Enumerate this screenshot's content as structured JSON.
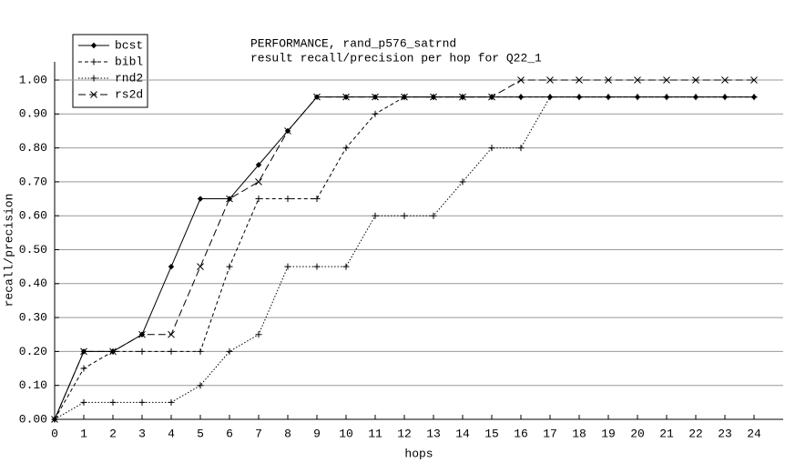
{
  "chart_data": {
    "type": "line",
    "title": "PERFORMANCE, rand_p576_satrnd",
    "subtitle": "result recall/precision per hop for Q22_1",
    "x_label": "hops",
    "y_label": "recall/precision",
    "x": [
      0,
      1,
      2,
      3,
      4,
      5,
      6,
      7,
      8,
      9,
      10,
      11,
      12,
      13,
      14,
      15,
      16,
      17,
      18,
      19,
      20,
      21,
      22,
      23,
      24
    ],
    "xlim": [
      0,
      25
    ],
    "xticks": [
      0,
      1,
      2,
      3,
      4,
      5,
      6,
      7,
      8,
      9,
      10,
      11,
      12,
      13,
      14,
      15,
      16,
      17,
      18,
      19,
      20,
      21,
      22,
      23,
      24
    ],
    "ylim": [
      0,
      1
    ],
    "yticks": [
      {
        "value": 0,
        "label": "0.00"
      },
      {
        "value": 0.1,
        "label": "0.10"
      },
      {
        "value": 0.2,
        "label": "0.20"
      },
      {
        "value": 0.3,
        "label": "0.30"
      },
      {
        "value": 0.4,
        "label": "0.40"
      },
      {
        "value": 0.5,
        "label": "0.50"
      },
      {
        "value": 0.6,
        "label": "0.60"
      },
      {
        "value": 0.7,
        "label": "0.70"
      },
      {
        "value": 0.8,
        "label": "0.80"
      },
      {
        "value": 0.9,
        "label": "0.90"
      },
      {
        "value": 1,
        "label": "1.00"
      }
    ],
    "grid": true,
    "legend": "top-left",
    "series": [
      {
        "name": "bcst",
        "color": "#000000",
        "dash": "none",
        "marker": "diamond",
        "values": [
          0,
          0.2,
          0.2,
          0.25,
          0.45,
          0.65,
          0.65,
          0.75,
          0.85,
          0.95,
          0.95,
          0.95,
          0.95,
          0.95,
          0.95,
          0.95,
          0.95,
          0.95,
          0.95,
          0.95,
          0.95,
          0.95,
          0.95,
          0.95,
          0.95
        ]
      },
      {
        "name": "bibl",
        "color": "#000000",
        "dash": "4 3",
        "marker": "plus",
        "values": [
          0,
          0.15,
          0.2,
          0.2,
          0.2,
          0.2,
          0.45,
          0.65,
          0.65,
          0.65,
          0.8,
          0.9,
          0.95,
          0.95,
          0.95,
          0.95,
          0.95,
          0.95,
          0.95,
          0.95,
          0.95,
          0.95,
          0.95,
          0.95,
          0.95
        ]
      },
      {
        "name": "rnd2",
        "color": "#000000",
        "dash": "1.5 2",
        "marker": "plus",
        "values": [
          0,
          0.05,
          0.05,
          0.05,
          0.05,
          0.1,
          0.2,
          0.25,
          0.45,
          0.45,
          0.45,
          0.6,
          0.6,
          0.6,
          0.7,
          0.8,
          0.8,
          0.95,
          0.95,
          0.95,
          0.95,
          0.95,
          0.95,
          0.95,
          0.95
        ]
      },
      {
        "name": "rs2d",
        "color": "#000000",
        "dash": "8 4",
        "marker": "cross",
        "values": [
          0,
          0.2,
          0.2,
          0.25,
          0.25,
          0.45,
          0.65,
          0.7,
          0.85,
          0.95,
          0.95,
          0.95,
          0.95,
          0.95,
          0.95,
          0.95,
          1,
          1,
          1,
          1,
          1,
          1,
          1,
          1,
          1
        ]
      }
    ]
  }
}
